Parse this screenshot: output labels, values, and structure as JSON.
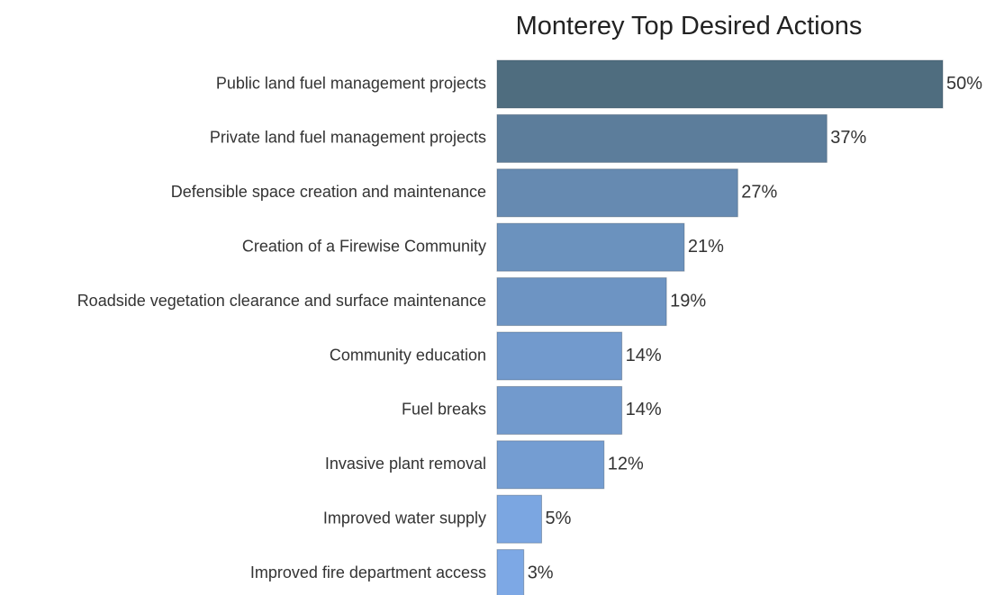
{
  "chart_data": {
    "type": "bar",
    "orientation": "horizontal",
    "title": "Monterey Top Desired Actions",
    "categories": [
      "Public land fuel management projects",
      "Private land fuel management projects",
      "Defensible space creation and maintenance",
      "Creation of a Firewise Community",
      "Roadside vegetation clearance and surface maintenance",
      "Community education",
      "Fuel breaks",
      "Invasive plant removal",
      "Improved water supply",
      "Improved fire department access"
    ],
    "values": [
      50,
      37,
      27,
      21,
      19,
      14,
      14,
      12,
      5,
      3
    ],
    "value_labels": [
      "50%",
      "37%",
      "27%",
      "21%",
      "19%",
      "14%",
      "14%",
      "12%",
      "5%",
      "3%"
    ],
    "unit": "%",
    "xlim": [
      0,
      50
    ],
    "grid": false,
    "legend": "none",
    "color_scale": [
      "#4f6d7f",
      "#80acec"
    ]
  }
}
